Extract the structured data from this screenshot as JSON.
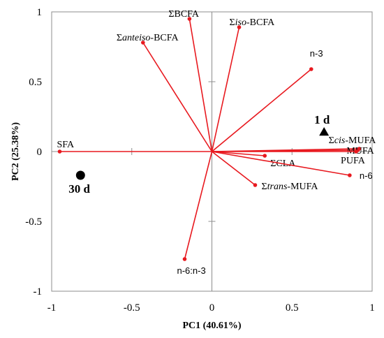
{
  "chart_data": {
    "type": "scatter",
    "subtype": "biplot",
    "xlabel": "PC1 (40.61%)",
    "ylabel": "PC2 (25.38%)",
    "xlim": [
      -1,
      1
    ],
    "ylim": [
      -1,
      1
    ],
    "x_ticks": [
      {
        "value": -1,
        "label": "-1"
      },
      {
        "value": -0.5,
        "label": "-0.5"
      },
      {
        "value": 0,
        "label": "0"
      },
      {
        "value": 0.5,
        "label": "0.5"
      },
      {
        "value": 1,
        "label": "1"
      }
    ],
    "y_ticks": [
      {
        "value": 1,
        "label": "1"
      },
      {
        "value": 0.5,
        "label": "0.5"
      },
      {
        "value": 0,
        "label": "0"
      },
      {
        "value": -0.5,
        "label": "-0.5"
      },
      {
        "value": -1,
        "label": "-1"
      }
    ],
    "grid": false,
    "vector_color": "#e8191f",
    "loadings": [
      {
        "id": "bcfa",
        "x": -0.14,
        "y": 0.95,
        "parts": [
          {
            "t": "ΣBCFA"
          }
        ]
      },
      {
        "id": "iso-bcfa",
        "x": 0.17,
        "y": 0.89,
        "parts": [
          {
            "t": "Σ"
          },
          {
            "t": "iso",
            "i": true
          },
          {
            "t": "-BCFA"
          }
        ]
      },
      {
        "id": "anteiso-bcfa",
        "x": -0.43,
        "y": 0.78,
        "parts": [
          {
            "t": "Σ"
          },
          {
            "t": "anteiso",
            "i": true
          },
          {
            "t": "-BCFA"
          }
        ]
      },
      {
        "id": "n-3",
        "x": 0.62,
        "y": 0.59,
        "sans": true,
        "parts": [
          {
            "t": "n-3"
          }
        ]
      },
      {
        "id": "sfa",
        "x": -0.95,
        "y": 0.0,
        "parts": [
          {
            "t": "SFA"
          }
        ]
      },
      {
        "id": "cis-mufa",
        "x": 0.92,
        "y": 0.02,
        "parts": [
          {
            "t": "Σ"
          },
          {
            "t": "cis",
            "i": true
          },
          {
            "t": "-MUFA"
          }
        ]
      },
      {
        "id": "mufa",
        "x": 0.91,
        "y": 0.01,
        "parts": [
          {
            "t": "MUFA"
          }
        ]
      },
      {
        "id": "pufa",
        "x": 0.9,
        "y": 0.0,
        "parts": [
          {
            "t": "PUFA"
          }
        ]
      },
      {
        "id": "cla",
        "x": 0.33,
        "y": -0.03,
        "parts": [
          {
            "t": "ΣCLA"
          }
        ]
      },
      {
        "id": "n-6",
        "x": 0.86,
        "y": -0.17,
        "sans": true,
        "parts": [
          {
            "t": "n-6"
          }
        ]
      },
      {
        "id": "trans-mufa",
        "x": 0.27,
        "y": -0.24,
        "parts": [
          {
            "t": "Σ"
          },
          {
            "t": "trans",
            "i": true
          },
          {
            "t": "-MUFA"
          }
        ]
      },
      {
        "id": "n6-n3",
        "x": -0.17,
        "y": -0.77,
        "sans": true,
        "parts": [
          {
            "t": "n-6:n-3"
          }
        ]
      }
    ],
    "scores": [
      {
        "id": "1d",
        "label": "1 d",
        "x": 0.7,
        "y": 0.14,
        "marker": "triangle"
      },
      {
        "id": "30d",
        "label": "30 d",
        "x": -0.82,
        "y": -0.17,
        "marker": "circle"
      }
    ]
  }
}
